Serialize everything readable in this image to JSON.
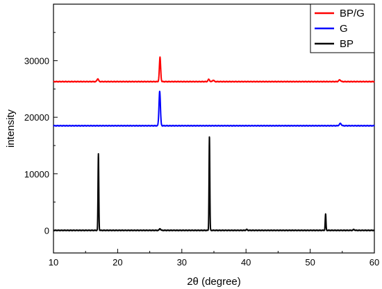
{
  "chart_data": {
    "type": "line",
    "xlabel": "2θ (degree)",
    "ylabel": "intensity",
    "xlim": [
      10,
      60
    ],
    "ylim": [
      -4000,
      40000
    ],
    "x_ticks": [
      10,
      20,
      30,
      40,
      50,
      60
    ],
    "y_ticks": [
      0,
      10000,
      20000,
      30000
    ],
    "grid": false,
    "legend_position": "top-right",
    "series": [
      {
        "name": "BP/G",
        "color": "#ff0000",
        "baseline": 26300,
        "peaks": [
          {
            "x": 16.9,
            "height": 500,
            "width": 0.12
          },
          {
            "x": 26.6,
            "height": 4300,
            "width": 0.1
          },
          {
            "x": 34.2,
            "height": 400,
            "width": 0.12
          },
          {
            "x": 34.9,
            "height": 250,
            "width": 0.12
          },
          {
            "x": 54.6,
            "height": 300,
            "width": 0.15
          }
        ]
      },
      {
        "name": "G",
        "color": "#0000ff",
        "baseline": 18500,
        "peaks": [
          {
            "x": 26.55,
            "height": 6100,
            "width": 0.11
          },
          {
            "x": 54.7,
            "height": 400,
            "width": 0.15
          }
        ]
      },
      {
        "name": "BP",
        "color": "#000000",
        "baseline": 0,
        "peaks": [
          {
            "x": 17.0,
            "height": 13500,
            "width": 0.06
          },
          {
            "x": 26.6,
            "height": 300,
            "width": 0.1
          },
          {
            "x": 34.3,
            "height": 16700,
            "width": 0.06
          },
          {
            "x": 40.1,
            "height": 150,
            "width": 0.1
          },
          {
            "x": 52.4,
            "height": 2900,
            "width": 0.06
          },
          {
            "x": 56.8,
            "height": 150,
            "width": 0.1
          }
        ]
      }
    ]
  }
}
